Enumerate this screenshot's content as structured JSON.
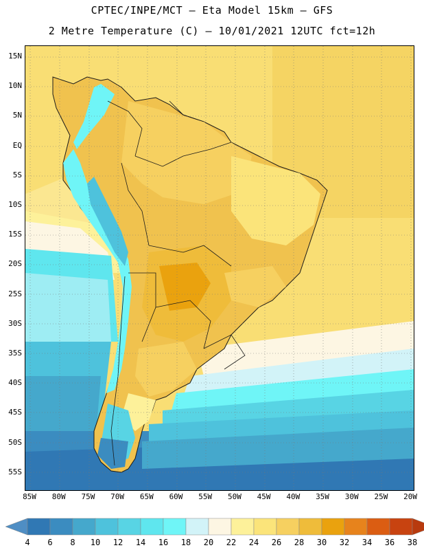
{
  "title_line1": "CPTEC/INPE/MCT –  Eta Model 15km – GFS",
  "title_line2": "2 Metre Temperature (C) – 10/01/2021 12UTC fct=12h",
  "lat_labels": [
    "15N",
    "10N",
    "5N",
    "EQ",
    "5S",
    "10S",
    "15S",
    "20S",
    "25S",
    "30S",
    "35S",
    "40S",
    "45S",
    "50S",
    "55S"
  ],
  "lon_labels": [
    "85W",
    "80W",
    "75W",
    "70W",
    "65W",
    "60W",
    "55W",
    "50W",
    "45W",
    "40W",
    "35W",
    "30W",
    "25W",
    "20W"
  ],
  "colorbar": {
    "levels": [
      "4",
      "6",
      "8",
      "10",
      "12",
      "14",
      "16",
      "18",
      "20",
      "22",
      "24",
      "26",
      "28",
      "30",
      "32",
      "34",
      "36",
      "38"
    ],
    "colors": [
      "#4f8ec4",
      "#3078b4",
      "#3b8cc0",
      "#45a8cc",
      "#4ec2dc",
      "#58d4e4",
      "#5fe6ee",
      "#6ff5f7",
      "#d2f3f8",
      "#fdf6e3",
      "#fdf19a",
      "#fbe47a",
      "#f6d060",
      "#efbc3a",
      "#eaa20e",
      "#e7831c",
      "#db5d12",
      "#c84310",
      "#b83a0e"
    ]
  },
  "chart_data": {
    "type": "map",
    "title": "2 Metre Temperature (C)",
    "model": "Eta Model 15km – GFS",
    "source": "CPTEC/INPE/MCT",
    "date": "10/01/2021 12UTC",
    "forecast": "fct=12h",
    "variable_units": "C",
    "lat_range": [
      -57.5,
      16.5
    ],
    "lon_range": [
      -86.0,
      -19.5
    ],
    "region": "South America"
  }
}
